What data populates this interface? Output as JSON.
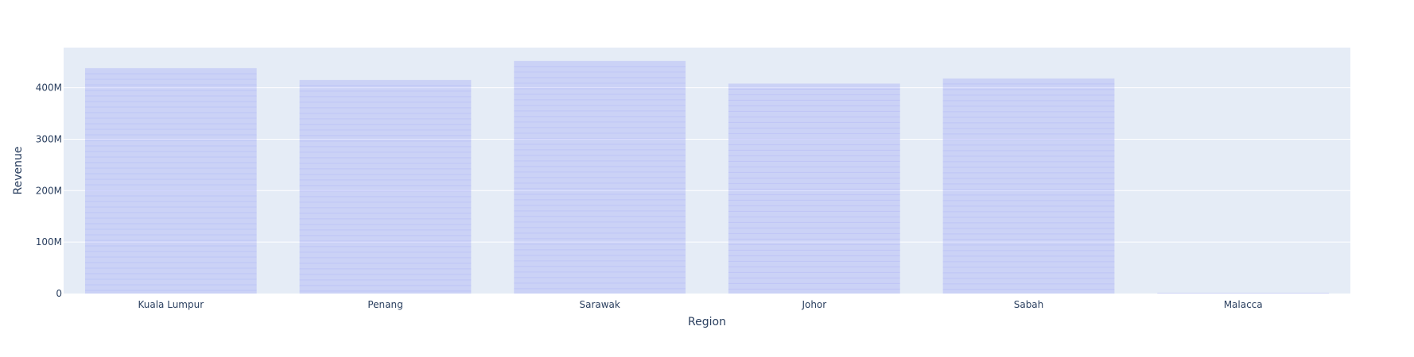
{
  "chart_data": {
    "type": "bar",
    "xlabel": "Region",
    "ylabel": "Revenue",
    "categories": [
      "Kuala Lumpur",
      "Penang",
      "Sarawak",
      "Johor",
      "Sabah",
      "Malacca"
    ],
    "values": [
      438000000,
      415000000,
      452000000,
      408000000,
      418000000,
      1500000
    ],
    "ylim": [
      0,
      478000000
    ],
    "yticks": [
      0,
      100000000,
      200000000,
      300000000,
      400000000
    ],
    "ytick_labels": [
      "0",
      "100M",
      "200M",
      "300M",
      "400M"
    ],
    "grid": true,
    "legend": "none",
    "colors": {
      "plot_bg": "#e5ecf6",
      "grid": "#ffffff",
      "bar_fill": "#636efa",
      "text": "#2a3f5f"
    }
  }
}
